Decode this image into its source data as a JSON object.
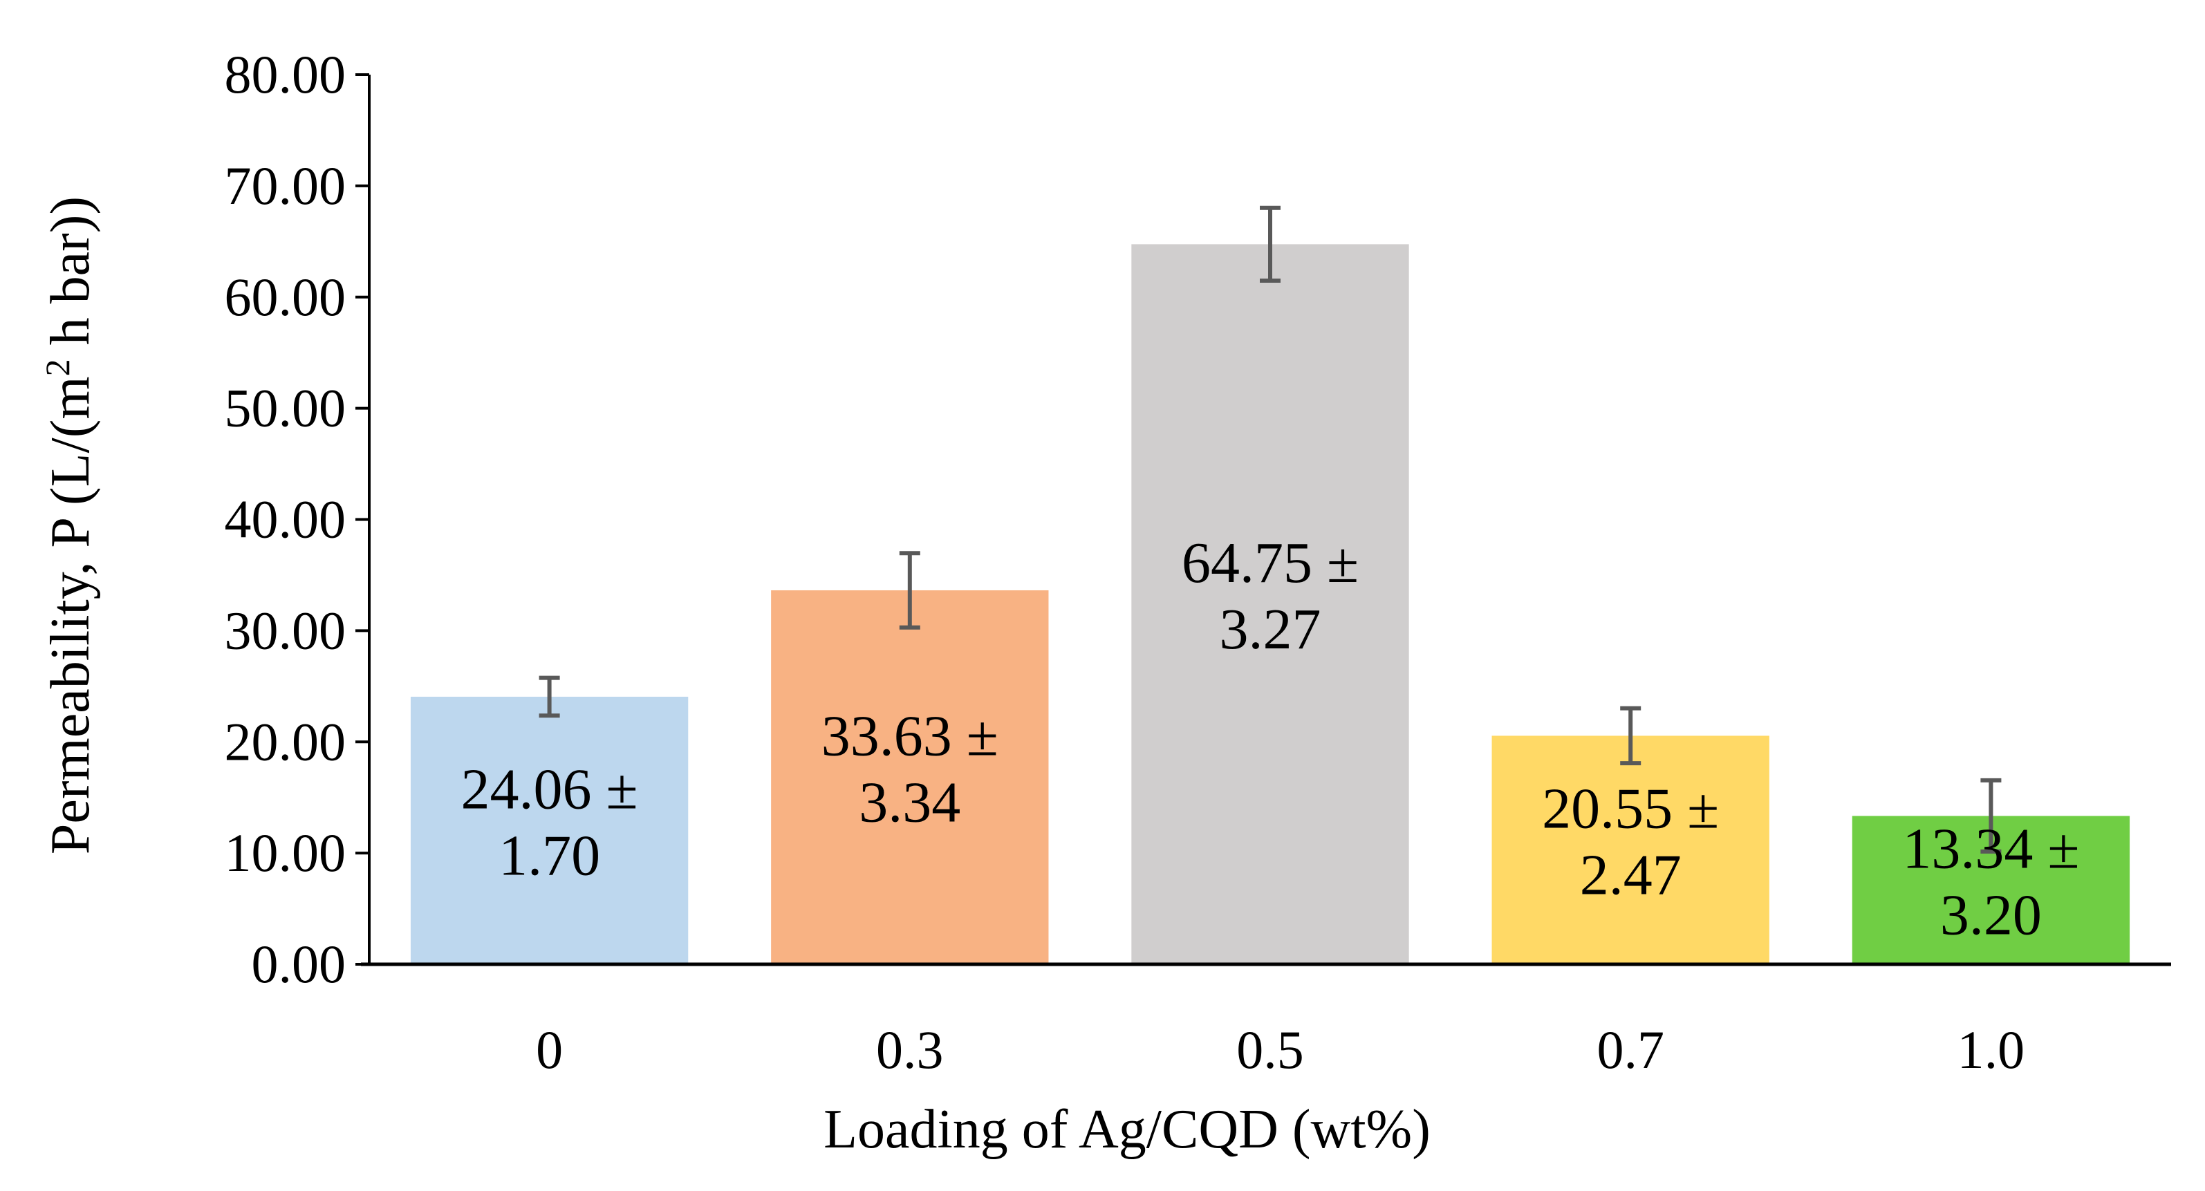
{
  "chart_data": {
    "type": "bar",
    "title": "",
    "xlabel": "Loading of Ag/CQD (wt%)",
    "ylabel": {
      "prefix": "Permeability, P (L/(m",
      "superscript": "2",
      "suffix": " h bar))"
    },
    "categories": [
      "0",
      "0.3",
      "0.5",
      "0.7",
      "1.0"
    ],
    "values": [
      24.06,
      33.63,
      64.75,
      20.55,
      13.34
    ],
    "errors": [
      1.7,
      3.34,
      3.27,
      2.47,
      3.2
    ],
    "data_labels": [
      [
        "24.06 ±",
        "1.70"
      ],
      [
        "33.63 ±",
        "3.34"
      ],
      [
        "64.75 ±",
        "3.27"
      ],
      [
        "20.55 ±",
        "2.47"
      ],
      [
        "13.34 ±",
        "3.20"
      ]
    ],
    "colors": [
      "#BDD7EE",
      "#F8B283",
      "#D0CECE",
      "#FFD966",
      "#70CE44"
    ],
    "error_bar_color": "#595959",
    "ylim": [
      0,
      80
    ],
    "yticks": [
      "0.00",
      "10.00",
      "20.00",
      "30.00",
      "40.00",
      "50.00",
      "60.00",
      "70.00",
      "80.00"
    ],
    "grid": false,
    "legend": "none"
  }
}
